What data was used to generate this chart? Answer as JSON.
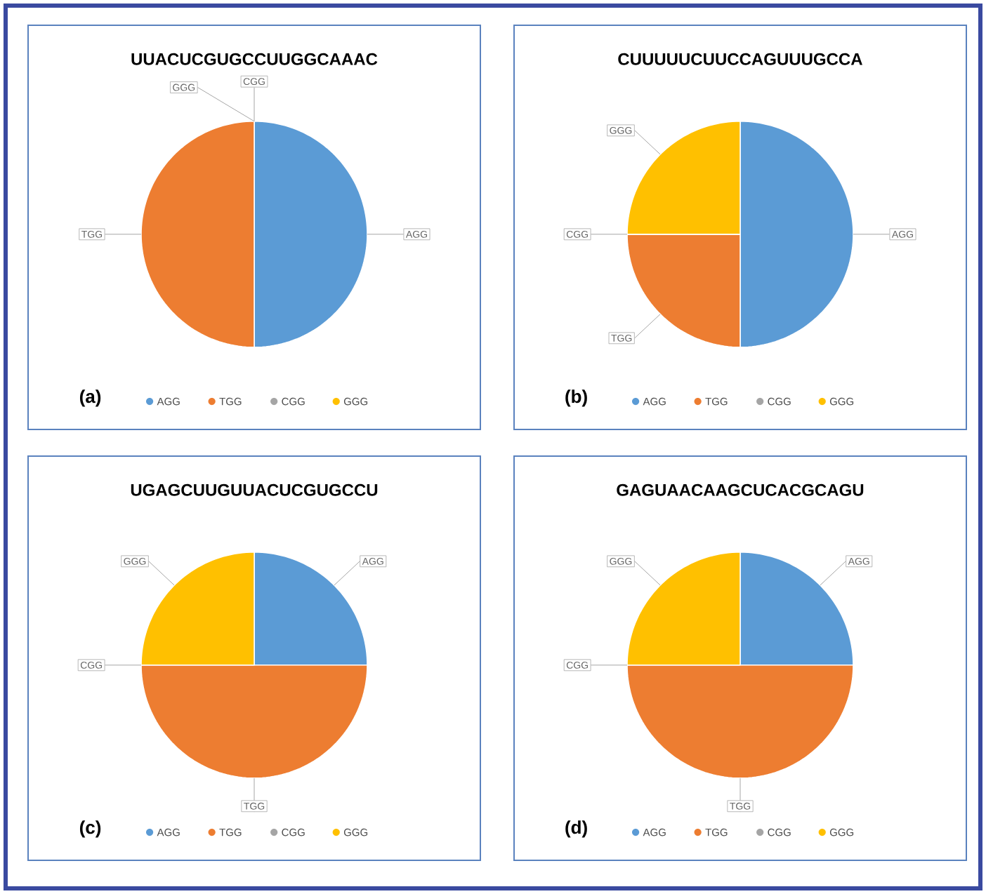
{
  "chart_data": [
    {
      "type": "pie",
      "title": "UUACUCGUGCCUUGGCAAAC",
      "categories": [
        "AGG",
        "TGG",
        "CGG",
        "GGG"
      ],
      "values": [
        50,
        50,
        0,
        0
      ],
      "colors": [
        "#5b9bd5",
        "#ed7d31",
        "#a5a5a5",
        "#ffc000"
      ],
      "legend": "bottom",
      "annotations": [
        "(a)"
      ]
    },
    {
      "type": "pie",
      "title": "CUUUUUCUUCCAGUUUGCCA",
      "categories": [
        "AGG",
        "TGG",
        "CGG",
        "GGG"
      ],
      "values": [
        50,
        25,
        0,
        25
      ],
      "colors": [
        "#5b9bd5",
        "#ed7d31",
        "#a5a5a5",
        "#ffc000"
      ],
      "legend": "bottom",
      "annotations": [
        "(b)"
      ]
    },
    {
      "type": "pie",
      "title": "UGAGCUUGUUACUCGUGCCU",
      "categories": [
        "AGG",
        "TGG",
        "CGG",
        "GGG"
      ],
      "values": [
        25,
        50,
        0,
        25
      ],
      "colors": [
        "#5b9bd5",
        "#ed7d31",
        "#a5a5a5",
        "#ffc000"
      ],
      "legend": "bottom",
      "annotations": [
        "(c)"
      ]
    },
    {
      "type": "pie",
      "title": "GAGUAACAAGCUCACGCAGU",
      "categories": [
        "AGG",
        "TGG",
        "CGG",
        "GGG"
      ],
      "values": [
        25,
        50,
        0,
        25
      ],
      "colors": [
        "#5b9bd5",
        "#ed7d31",
        "#a5a5a5",
        "#ffc000"
      ],
      "legend": "bottom",
      "annotations": [
        "(d)"
      ]
    }
  ]
}
